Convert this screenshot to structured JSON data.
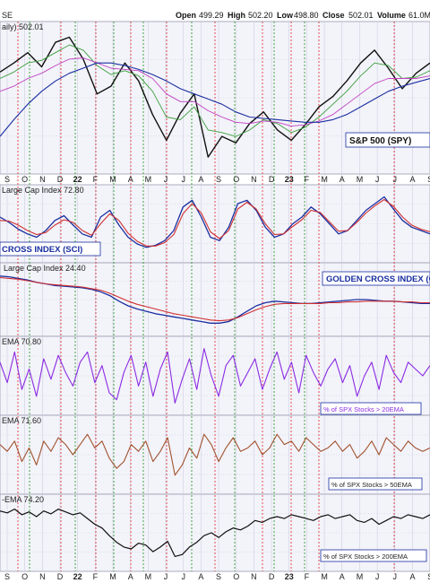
{
  "header": {
    "symbol_fragment": "SE",
    "open_label": "Open",
    "open_value": "499.29",
    "high_label": "High",
    "high_value": "502.20",
    "low_label": "Low",
    "low_value": "498.80",
    "close_label": "Close",
    "close_value": "502.01",
    "volume_label": "Volume",
    "volume_value": "61.0M"
  },
  "x_axis_labels": [
    "S",
    "O",
    "N",
    "D",
    "22",
    "F",
    "M",
    "A",
    "M",
    "J",
    "J",
    "A",
    "S",
    "O",
    "N",
    "D",
    "23",
    "F",
    "M",
    "A",
    "M",
    "J",
    "J",
    "A",
    "S"
  ],
  "colors": {
    "panel_bg": "#f3f3fa",
    "grid": "#c8c8dc",
    "vline_red": "#e23b3b",
    "vline_green": "#2e9e2e",
    "price": "#111111",
    "price_up": "#2a2a2a",
    "price_down": "#b01010",
    "ema_fast": "#3ca03c",
    "ema_slow": "#c040c0",
    "ema_200": "#1a2fa0",
    "sci_short": "#1a2fa0",
    "sci_long": "#d03030",
    "gci_short": "#1a2fa0",
    "gci_long": "#d03030",
    "pct20": "#8a2be2",
    "pct50": "#a0522d",
    "pct200": "#111111"
  },
  "chart_data": [
    {
      "type": "line",
      "panel": "price",
      "label": "aily) 502.01",
      "annotation": "S&P 500 (SPY)",
      "series": [
        {
          "name": "S&P 500 (SPY)",
          "values": [
            445,
            452,
            460,
            449,
            468,
            472,
            455,
            428,
            434,
            452,
            438,
            412,
            392,
            413,
            428,
            379,
            395,
            390,
            405,
            414,
            400,
            392,
            404,
            418,
            426,
            438,
            452,
            462,
            448,
            432,
            444,
            452
          ]
        },
        {
          "name": "",
          "values": [
            440,
            445,
            452,
            454,
            460,
            466,
            462,
            450,
            443,
            446,
            442,
            430,
            410,
            408,
            418,
            400,
            398,
            395,
            400,
            408,
            405,
            398,
            402,
            410,
            420,
            430,
            442,
            452,
            450,
            440,
            441,
            446
          ]
        },
        {
          "name": "",
          "values": [
            430,
            434,
            440,
            444,
            450,
            455,
            456,
            452,
            448,
            447,
            446,
            440,
            428,
            422,
            422,
            415,
            410,
            406,
            405,
            407,
            406,
            403,
            404,
            407,
            412,
            420,
            428,
            436,
            440,
            440,
            440,
            442
          ]
        },
        {
          "name": "",
          "values": [
            395,
            408,
            420,
            430,
            438,
            444,
            448,
            452,
            452,
            450,
            447,
            443,
            438,
            432,
            428,
            424,
            420,
            414,
            410,
            409,
            408,
            407,
            406,
            406,
            408,
            412,
            418,
            424,
            430,
            434,
            437,
            440
          ]
        }
      ]
    },
    {
      "type": "line",
      "panel": "sci",
      "label": "Large Cap Index 72.80",
      "annotation": "CROSS INDEX (SCI)",
      "series": [
        {
          "name": "",
          "values": [
            60,
            52,
            42,
            35,
            30,
            40,
            55,
            62,
            48,
            35,
            30,
            60,
            70,
            48,
            30,
            20,
            15,
            18,
            25,
            40,
            75,
            85,
            60,
            30,
            25,
            45,
            80,
            85,
            70,
            45,
            30,
            35,
            50,
            60,
            75,
            65,
            50,
            35,
            40,
            55,
            70,
            80,
            90,
            72,
            55,
            45,
            40,
            35
          ]
        },
        {
          "name": "",
          "values": [
            55,
            54,
            48,
            40,
            34,
            37,
            48,
            56,
            52,
            40,
            33,
            50,
            65,
            55,
            36,
            24,
            17,
            17,
            22,
            34,
            65,
            80,
            66,
            38,
            28,
            40,
            72,
            82,
            72,
            50,
            34,
            35,
            46,
            56,
            70,
            67,
            53,
            39,
            40,
            52,
            66,
            77,
            86,
            76,
            60,
            48,
            42,
            38
          ]
        }
      ]
    },
    {
      "type": "line",
      "panel": "gci",
      "label": "Large Cap Index 24.40",
      "annotation": "GOLDEN CROSS INDEX (G",
      "series": [
        {
          "name": "",
          "values": [
            80,
            79,
            77,
            75,
            72,
            70,
            68,
            67,
            66,
            65,
            63,
            60,
            55,
            48,
            42,
            38,
            35,
            32,
            30,
            28,
            26,
            24,
            22,
            20,
            20,
            22,
            28,
            35,
            42,
            46,
            48,
            47,
            46,
            45,
            45,
            46,
            47,
            48,
            49,
            50,
            50,
            49,
            48,
            48,
            47,
            46,
            45,
            45
          ]
        },
        {
          "name": "",
          "values": [
            78,
            77,
            76,
            74,
            72,
            70,
            69,
            68,
            67,
            66,
            64,
            62,
            58,
            53,
            48,
            44,
            41,
            38,
            35,
            32,
            30,
            28,
            26,
            24,
            23,
            24,
            27,
            32,
            37,
            41,
            44,
            45,
            45,
            45,
            45,
            45,
            46,
            46,
            47,
            47,
            48,
            48,
            48,
            48,
            47,
            47,
            46,
            46
          ]
        }
      ]
    },
    {
      "type": "line",
      "panel": "pct20",
      "label": "EMA 70.80",
      "annotation": "% of SPX Stocks > 20EMA",
      "series": [
        {
          "name": "",
          "values": [
            70,
            40,
            85,
            30,
            60,
            20,
            75,
            45,
            80,
            55,
            35,
            70,
            85,
            40,
            65,
            25,
            15,
            55,
            80,
            35,
            70,
            20,
            60,
            85,
            10,
            45,
            75,
            30,
            90,
            50,
            20,
            65,
            80,
            35,
            55,
            75,
            30,
            60,
            85,
            45,
            70,
            25,
            80,
            55,
            35,
            60,
            75,
            40,
            65,
            20,
            50,
            70,
            30,
            80,
            55,
            40,
            70,
            60,
            50,
            65
          ]
        }
      ]
    },
    {
      "type": "line",
      "panel": "pct50",
      "label": "EMA 71.60",
      "annotation": "% of SPX Stocks > 50EMA",
      "series": [
        {
          "name": "",
          "values": [
            65,
            55,
            70,
            40,
            60,
            35,
            70,
            55,
            75,
            65,
            50,
            65,
            80,
            60,
            70,
            45,
            30,
            40,
            65,
            55,
            70,
            40,
            55,
            75,
            20,
            35,
            60,
            45,
            80,
            65,
            40,
            60,
            75,
            55,
            60,
            70,
            50,
            60,
            80,
            65,
            70,
            55,
            75,
            65,
            55,
            60,
            70,
            55,
            65,
            45,
            55,
            70,
            50,
            75,
            65,
            55,
            70,
            60,
            55,
            60
          ]
        }
      ]
    },
    {
      "type": "line",
      "panel": "pct200",
      "label": "-EMA 74.20",
      "annotation": "% of SPX Stocks > 200EMA",
      "series": [
        {
          "name": "",
          "values": [
            78,
            76,
            80,
            74,
            77,
            72,
            78,
            75,
            80,
            77,
            74,
            76,
            70,
            64,
            60,
            52,
            45,
            40,
            38,
            44,
            42,
            35,
            40,
            46,
            30,
            32,
            40,
            45,
            52,
            55,
            50,
            56,
            60,
            58,
            62,
            68,
            66,
            70,
            72,
            70,
            74,
            72,
            70,
            68,
            72,
            74,
            70,
            72,
            74,
            68,
            66,
            70,
            64,
            68,
            72,
            70,
            74,
            72,
            70,
            74
          ]
        }
      ]
    }
  ]
}
